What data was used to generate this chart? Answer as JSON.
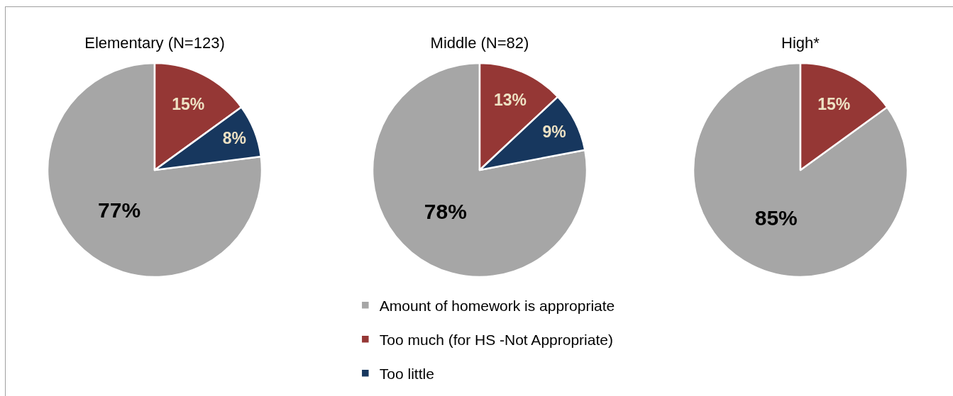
{
  "chart_data": [
    {
      "type": "pie",
      "title": "Elementary (N=123)",
      "categories": [
        null,
        null,
        null
      ],
      "values": [
        77,
        15,
        8
      ],
      "colors": [
        "#a6a6a6",
        "#953735",
        "#17375e"
      ],
      "value_labels": [
        "77%",
        "15%",
        "8%"
      ]
    },
    {
      "type": "pie",
      "title": "Middle (N=82)",
      "categories": [
        "Amount of homework is appropriate",
        "Too much (for HS -Not Appropriate)",
        "Too little"
      ],
      "values": [
        78,
        13,
        9
      ],
      "colors": [
        "#a6a6a6",
        "#953735",
        "#17375e"
      ],
      "value_labels": [
        "78%",
        "13%",
        "9%"
      ],
      "legend": "bottom"
    },
    {
      "type": "pie",
      "title": "High*",
      "categories": [
        null,
        null
      ],
      "values": [
        85,
        15
      ],
      "colors": [
        "#a6a6a6",
        "#953735"
      ],
      "value_labels": [
        "85%",
        "15%"
      ]
    }
  ]
}
